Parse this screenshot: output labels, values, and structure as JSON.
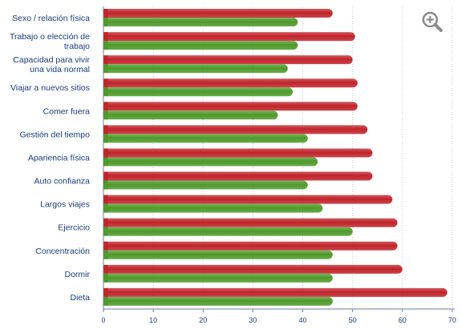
{
  "chart_data": {
    "type": "bar",
    "orientation": "horizontal",
    "categories": [
      "Sexo / relación física",
      "Trabajo o elección de trabajo",
      "Capacidad para vivir una vida normal",
      "Viajar a nuevos sitios",
      "Comer fuera",
      "Gestión del tiempo",
      "Apariencia física",
      "Auto confianza",
      "Largos viajes",
      "Ejercicio",
      "Concentración",
      "Dormir",
      "Dieta"
    ],
    "category_lines": [
      [
        "Sexo / relación física"
      ],
      [
        "Trabajo o elección de",
        "trabajo"
      ],
      [
        "Capacidad para vivir",
        "una vida normal"
      ],
      [
        "Viajar a nuevos sitios"
      ],
      [
        "Comer fuera"
      ],
      [
        "Gestión del tiempo"
      ],
      [
        "Apariencia física"
      ],
      [
        "Auto confianza"
      ],
      [
        "Largos viajes"
      ],
      [
        "Ejercicio"
      ],
      [
        "Concentración"
      ],
      [
        "Dormir"
      ],
      [
        "Dieta"
      ]
    ],
    "series": [
      {
        "color": "#c0242a",
        "values": [
          46,
          50.5,
          50,
          51,
          51,
          53,
          54,
          54,
          58,
          59,
          59,
          60,
          69
        ]
      },
      {
        "color": "#4e9a2a",
        "values": [
          39,
          39,
          37,
          38,
          35,
          41,
          43,
          41,
          44,
          50,
          46,
          46,
          46
        ]
      }
    ],
    "xlim": [
      0,
      70
    ],
    "xticks": [
      0,
      10,
      20,
      30,
      40,
      50,
      60,
      70
    ],
    "title": "",
    "xlabel": "",
    "ylabel": "",
    "grid": true,
    "legend": "none"
  },
  "ui": {
    "zoom_icon": "zoom-in-icon"
  }
}
